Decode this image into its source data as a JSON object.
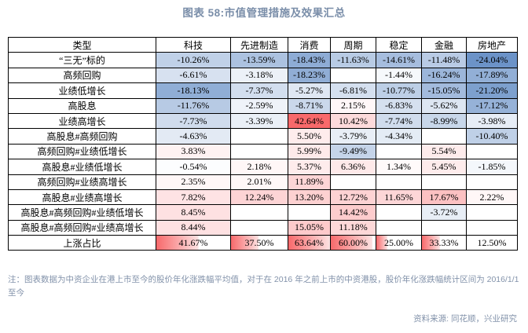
{
  "note": "注：图表数据为中资企业在港上市至今的股价年化涨跌幅平均值，对于在 2016 年之前上市的中资港股，股价年化涨跌幅统计区间为 2016/1/1 至今",
  "source": "资料来源: 同花顺，兴业研究",
  "colors": {
    "title_text": "#7A8EA9",
    "note_text": "#8292AA",
    "border": "#000000",
    "negative_extreme": "#6C93C8",
    "positive_extreme": "#F8696B",
    "midpoint": "#FFFFFF",
    "databar_start": "#F8696B",
    "databar_end": "#FCE2E2"
  },
  "chart_data": {
    "type": "table",
    "title": "图表 58:市值管理措施及效果汇总",
    "columns": [
      "类型",
      "科技",
      "先进制造",
      "消费",
      "周期",
      "稳定",
      "金融",
      "房地产"
    ],
    "rows": [
      {
        "label": "“三无”标的",
        "values": [
          "-10.26%",
          "-13.59%",
          "-18.43%",
          "-11.63%",
          "-14.61%",
          "-11.48%",
          "-24.04%"
        ]
      },
      {
        "label": "高频回购",
        "values": [
          "-6.61%",
          "-3.18%",
          "-18.23%",
          "",
          "-1.44%",
          "-16.24%",
          "-17.89%"
        ]
      },
      {
        "label": "业绩低增长",
        "values": [
          "-18.13%",
          "-7.37%",
          "-5.27%",
          "-6.81%",
          "-10.77%",
          "-15.05%",
          "-21.20%"
        ]
      },
      {
        "label": "高股息",
        "values": [
          "-11.76%",
          "-2.59%",
          "-8.71%",
          "2.15%",
          "-6.83%",
          "-5.62%",
          "-17.12%"
        ]
      },
      {
        "label": "业绩高增长",
        "values": [
          "-7.73%",
          "-3.39%",
          "42.64%",
          "10.42%",
          "-7.74%",
          "-8.99%",
          "-3.98%"
        ]
      },
      {
        "label": "高股息#高频回购",
        "values": [
          "-4.63%",
          "",
          "5.50%",
          "-3.79%",
          "-4.34%",
          "",
          "-10.40%"
        ]
      },
      {
        "label": "高频回购#业绩低增长",
        "values": [
          "3.83%",
          "",
          "5.99%",
          "-9.49%",
          "",
          "5.54%",
          ""
        ]
      },
      {
        "label": "高股息#业绩低增长",
        "values": [
          "-0.54%",
          "2.18%",
          "5.37%",
          "6.36%",
          "1.34%",
          "5.45%",
          "-1.85%"
        ]
      },
      {
        "label": "高频回购#业绩高增长",
        "values": [
          "2.35%",
          "2.01%",
          "11.89%",
          "",
          "",
          "",
          ""
        ]
      },
      {
        "label": "高股息#业绩高增长",
        "values": [
          "7.82%",
          "12.24%",
          "13.20%",
          "12.72%",
          "11.65%",
          "17.67%",
          "2.22%"
        ]
      },
      {
        "label": "高股息#高频回购#业绩低增长",
        "values": [
          "8.45%",
          "",
          "",
          "14.42%",
          "",
          "-3.72%",
          ""
        ]
      },
      {
        "label": "高股息#高频回购#业绩高增长",
        "values": [
          "8.44%",
          "",
          "15.05%",
          "11.18%",
          "",
          "",
          ""
        ]
      },
      {
        "label": "上涨占比",
        "values": [
          "41.67%",
          "37.50%",
          "63.64%",
          "60.00%",
          "25.00%",
          "33.33%",
          "12.50%"
        ],
        "style": "databar"
      }
    ],
    "formatting": {
      "color_scale": {
        "min": -24.04,
        "mid": 0,
        "max": 42.64
      },
      "databar": {
        "min": 12.5,
        "max": 63.64
      }
    },
    "layout_hints": {
      "grid": "all-borders",
      "value_alignment": "center",
      "negative_cells": "blue scale (darker = more negative)",
      "positive_cells": "red scale (darker = more positive)",
      "last_row": "red gradient data bars"
    }
  }
}
